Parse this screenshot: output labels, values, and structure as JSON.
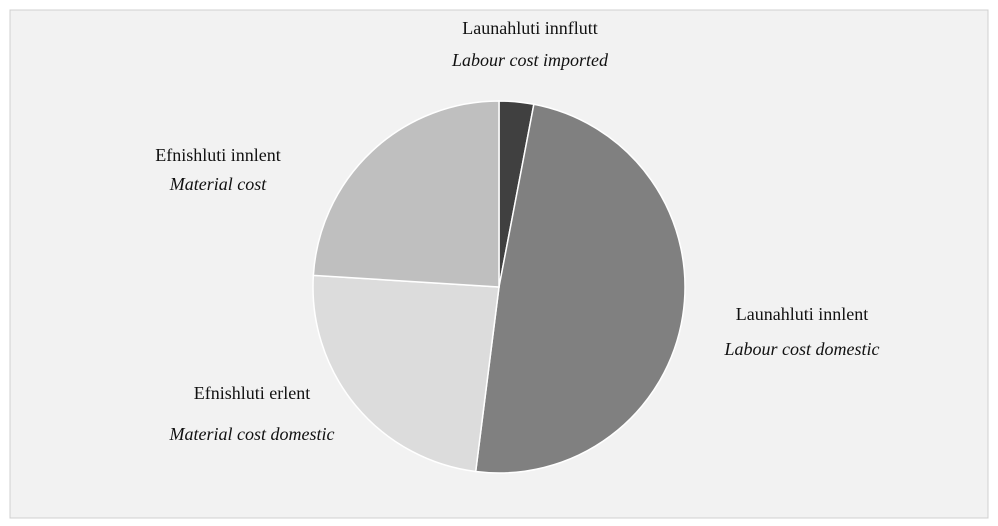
{
  "chart_data": {
    "type": "pie",
    "categories": [
      "Launahluti innflutt",
      "Launahluti innlent",
      "Efnishluti erlent",
      "Efnishluti innlent"
    ],
    "translations": [
      "Labour cost imported",
      "Labour cost domestic",
      "Material cost domestic",
      "Material cost"
    ],
    "values": [
      3,
      49,
      24,
      24
    ],
    "colors": [
      "#404040",
      "#808080",
      "#dcdcdc",
      "#bfbfbf"
    ]
  }
}
